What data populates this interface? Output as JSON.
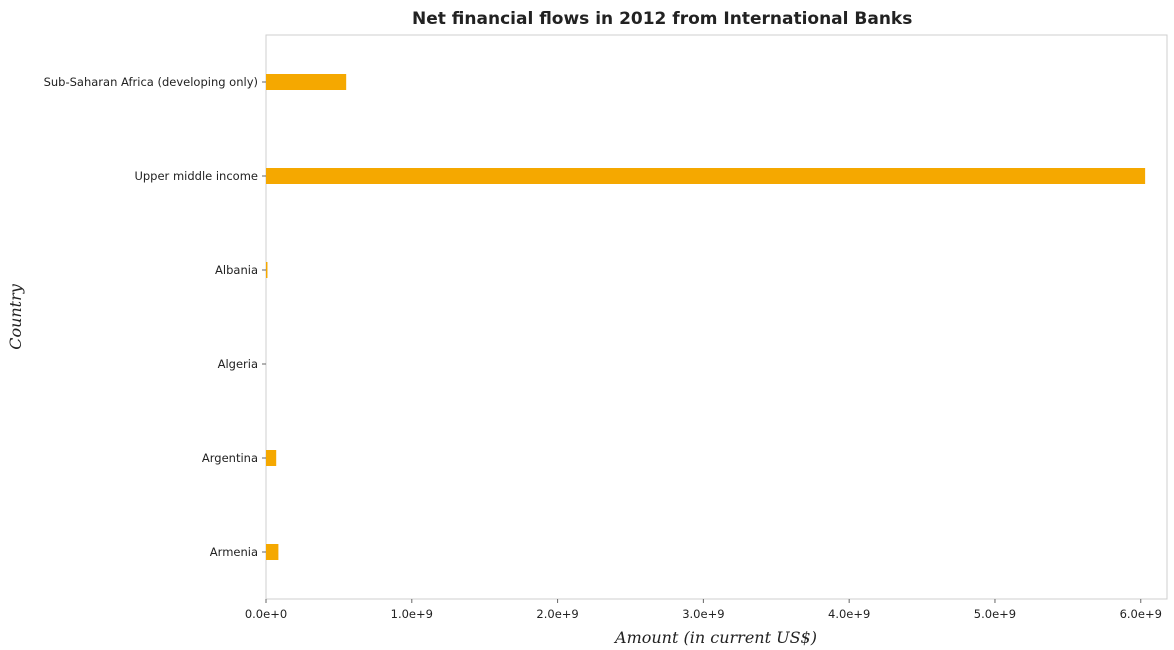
{
  "chart_data": {
    "type": "bar",
    "orientation": "horizontal",
    "title": "Net financial flows in 2012 from International Banks",
    "xlabel": "Amount (in current US$)",
    "ylabel": "Country",
    "categories": [
      "Sub-Saharan Africa (developing only)",
      "Upper middle income",
      "Albania",
      "Algeria",
      "Argentina",
      "Armenia"
    ],
    "values": [
      550000000,
      6030000000,
      10000000,
      0,
      70000000,
      85000000
    ],
    "xlim": [
      0,
      6180000000
    ],
    "xticks": [
      0,
      1000000000,
      2000000000,
      3000000000,
      4000000000,
      5000000000,
      6000000000
    ],
    "xtick_labels": [
      "0.0e+0",
      "1.0e+9",
      "2.0e+9",
      "3.0e+9",
      "4.0e+9",
      "5.0e+9",
      "6.0e+9"
    ],
    "bar_color": "#f5a800",
    "grid": false,
    "legend": "none"
  }
}
